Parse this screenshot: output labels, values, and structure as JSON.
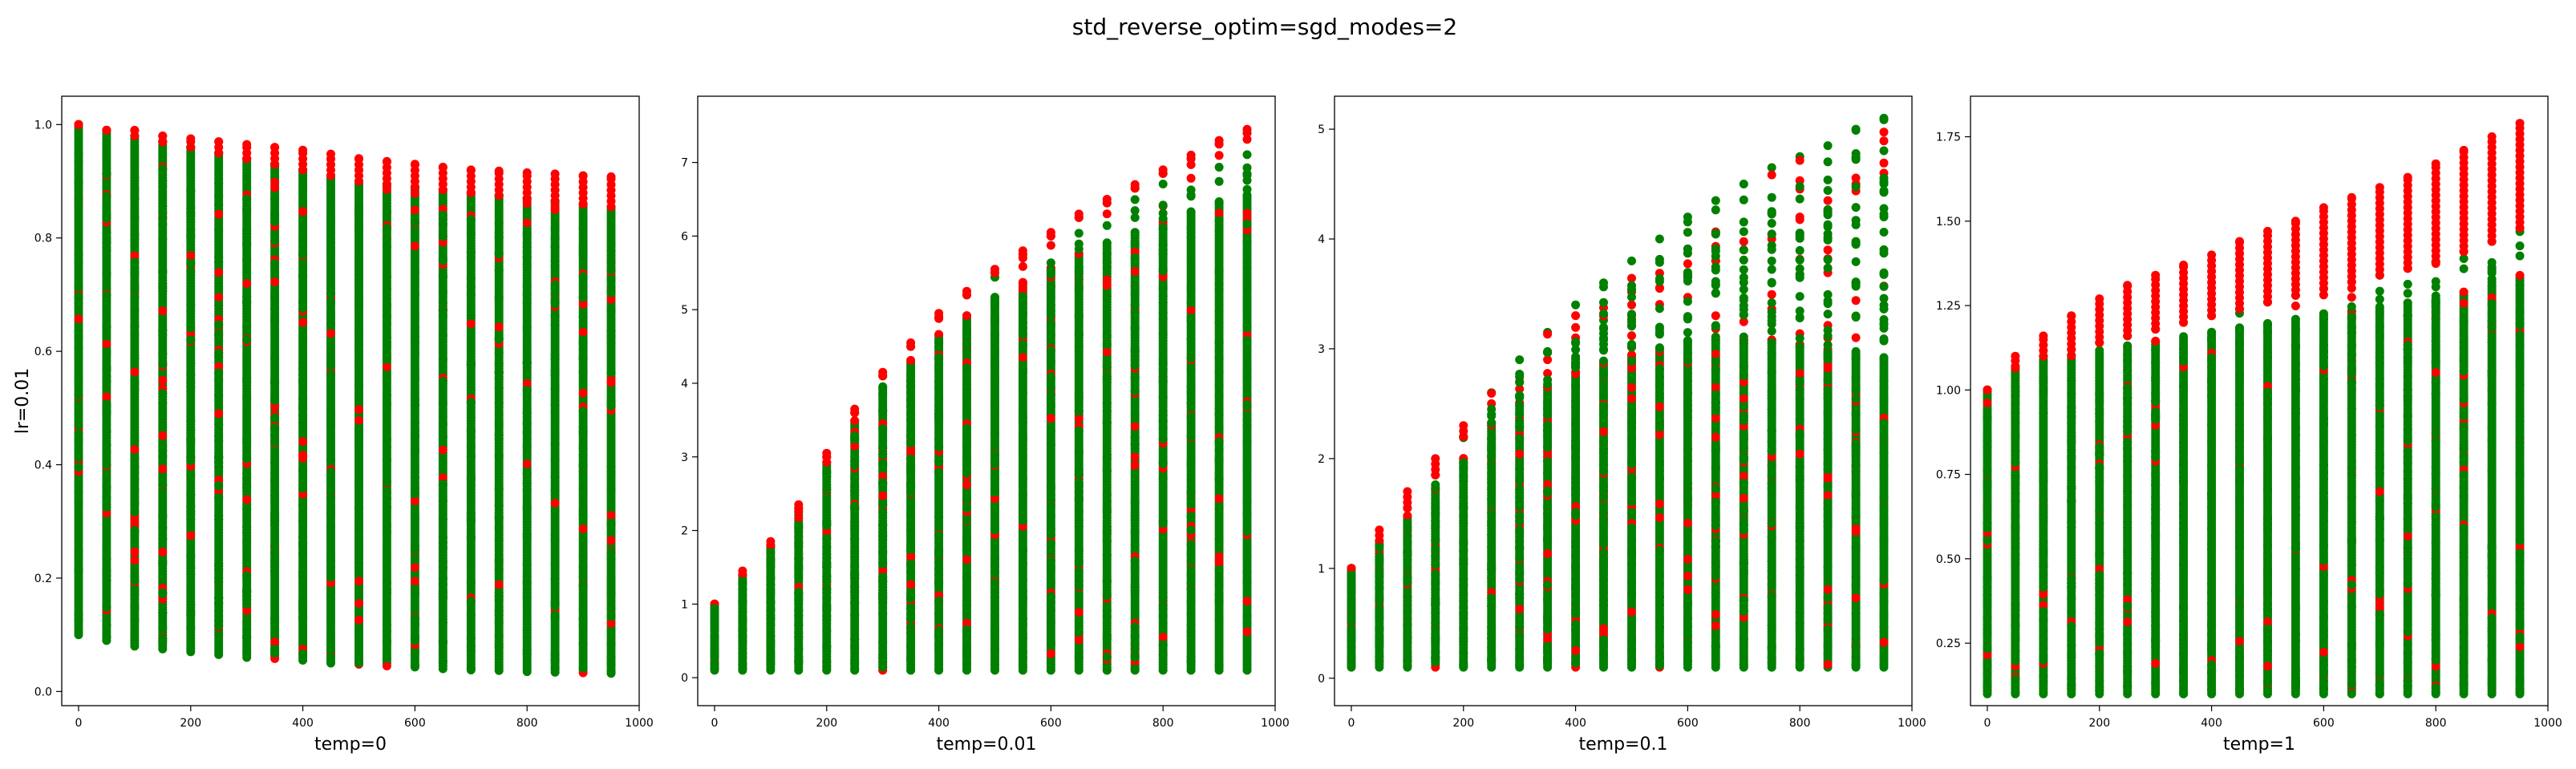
{
  "figure_title": "std_reverse_optim=sgd_modes=2",
  "colors": {
    "red": "#ff0000",
    "green": "#008000"
  },
  "chart_data": [
    {
      "type": "scatter",
      "xlabel": "temp=0",
      "ylabel": "lr=0.01",
      "xlim": [
        -30,
        1000
      ],
      "ylim": [
        -0.025,
        1.05
      ],
      "xticks": [
        0,
        200,
        400,
        600,
        800,
        1000
      ],
      "yticks": [
        0.0,
        0.2,
        0.4,
        0.6,
        0.8,
        1.0
      ],
      "ytick_labels": [
        "0.0",
        "0.2",
        "0.4",
        "0.6",
        "0.8",
        "1.0"
      ],
      "x": [
        0,
        50,
        100,
        150,
        200,
        250,
        300,
        350,
        400,
        450,
        500,
        550,
        600,
        650,
        700,
        750,
        800,
        850,
        900,
        950
      ],
      "red_max": [
        1.0,
        0.99,
        0.99,
        0.98,
        0.975,
        0.97,
        0.965,
        0.96,
        0.955,
        0.948,
        0.94,
        0.935,
        0.93,
        0.925,
        0.92,
        0.918,
        0.915,
        0.913,
        0.91,
        0.908
      ],
      "green_max": [
        1.0,
        0.99,
        0.98,
        0.97,
        0.96,
        0.95,
        0.94,
        0.93,
        0.92,
        0.91,
        0.9,
        0.895,
        0.89,
        0.885,
        0.88,
        0.875,
        0.87,
        0.865,
        0.86,
        0.855
      ],
      "green_min": [
        0.1,
        0.09,
        0.08,
        0.075,
        0.07,
        0.065,
        0.06,
        0.058,
        0.055,
        0.05,
        0.048,
        0.045,
        0.043,
        0.04,
        0.038,
        0.037,
        0.035,
        0.034,
        0.033,
        0.032
      ],
      "outlier_factor": 0,
      "red_density": 0.15
    },
    {
      "type": "scatter",
      "xlabel": "temp=0.01",
      "ylabel": "",
      "xlim": [
        -30,
        1000
      ],
      "ylim": [
        -0.38,
        7.9
      ],
      "xticks": [
        0,
        200,
        400,
        600,
        800,
        1000
      ],
      "yticks": [
        0,
        1,
        2,
        3,
        4,
        5,
        6,
        7
      ],
      "ytick_labels": [
        "0",
        "1",
        "2",
        "3",
        "4",
        "5",
        "6",
        "7"
      ],
      "x": [
        0,
        50,
        100,
        150,
        200,
        250,
        300,
        350,
        400,
        450,
        500,
        550,
        600,
        650,
        700,
        750,
        800,
        850,
        900,
        950
      ],
      "red_max": [
        1.0,
        1.45,
        1.85,
        2.35,
        3.05,
        3.65,
        4.15,
        4.55,
        4.95,
        5.25,
        5.55,
        5.8,
        6.05,
        6.3,
        6.5,
        6.7,
        6.9,
        7.1,
        7.3,
        7.45
      ],
      "green_max": [
        1.0,
        1.4,
        1.8,
        2.3,
        3.0,
        3.6,
        4.1,
        4.5,
        4.9,
        5.2,
        5.5,
        5.75,
        6.0,
        6.25,
        6.45,
        6.65,
        6.85,
        7.05,
        7.25,
        7.4
      ],
      "green_min": [
        0.1,
        0.1,
        0.1,
        0.1,
        0.1,
        0.1,
        0.1,
        0.1,
        0.1,
        0.1,
        0.1,
        0.1,
        0.1,
        0.1,
        0.1,
        0.1,
        0.1,
        0.1,
        0.1,
        0.1
      ],
      "outlier_factor": 0.12,
      "red_density": 0.2
    },
    {
      "type": "scatter",
      "xlabel": "temp=0.1",
      "ylabel": "",
      "xlim": [
        -30,
        1000
      ],
      "ylim": [
        -0.25,
        5.3
      ],
      "xticks": [
        0,
        200,
        400,
        600,
        800,
        1000
      ],
      "yticks": [
        0,
        1,
        2,
        3,
        4,
        5
      ],
      "ytick_labels": [
        "0",
        "1",
        "2",
        "3",
        "4",
        "5"
      ],
      "x": [
        0,
        50,
        100,
        150,
        200,
        250,
        300,
        350,
        400,
        450,
        500,
        550,
        600,
        650,
        700,
        750,
        800,
        850,
        900,
        950
      ],
      "red_max": [
        1.0,
        1.35,
        1.7,
        2.0,
        2.3,
        2.5,
        2.7,
        2.9,
        3.1,
        3.3,
        3.4,
        3.55,
        3.65,
        3.8,
        3.9,
        4.0,
        4.2,
        4.35,
        4.5,
        4.6
      ],
      "green_max": [
        1.0,
        1.25,
        1.55,
        1.85,
        2.2,
        2.6,
        2.9,
        3.15,
        3.4,
        3.6,
        3.8,
        4.0,
        4.2,
        4.35,
        4.5,
        4.65,
        4.75,
        4.85,
        5.0,
        5.1
      ],
      "green_min": [
        0.1,
        0.1,
        0.1,
        0.1,
        0.1,
        0.1,
        0.1,
        0.1,
        0.1,
        0.1,
        0.1,
        0.1,
        0.1,
        0.1,
        0.1,
        0.1,
        0.1,
        0.1,
        0.1,
        0.1
      ],
      "outlier_factor": 0.45,
      "red_density": 0.28
    },
    {
      "type": "scatter",
      "xlabel": "temp=1",
      "ylabel": "",
      "xlim": [
        -30,
        1000
      ],
      "ylim": [
        0.065,
        1.87
      ],
      "xticks": [
        0,
        200,
        400,
        600,
        800,
        1000
      ],
      "yticks": [
        0.25,
        0.5,
        0.75,
        1.0,
        1.25,
        1.5,
        1.75
      ],
      "ytick_labels": [
        "0.25",
        "0.50",
        "0.75",
        "1.00",
        "1.25",
        "1.50",
        "1.75"
      ],
      "x": [
        0,
        50,
        100,
        150,
        200,
        250,
        300,
        350,
        400,
        450,
        500,
        550,
        600,
        650,
        700,
        750,
        800,
        850,
        900,
        950
      ],
      "red_max": [
        1.0,
        1.1,
        1.16,
        1.22,
        1.27,
        1.31,
        1.34,
        1.37,
        1.4,
        1.44,
        1.47,
        1.5,
        1.54,
        1.57,
        1.6,
        1.63,
        1.67,
        1.71,
        1.75,
        1.79
      ],
      "green_max": [
        1.0,
        1.07,
        1.1,
        1.12,
        1.14,
        1.16,
        1.18,
        1.2,
        1.22,
        1.24,
        1.26,
        1.28,
        1.3,
        1.32,
        1.34,
        1.36,
        1.38,
        1.41,
        1.44,
        1.48
      ],
      "green_min": [
        0.1,
        0.1,
        0.1,
        0.1,
        0.1,
        0.1,
        0.1,
        0.1,
        0.1,
        0.1,
        0.1,
        0.1,
        0.1,
        0.1,
        0.1,
        0.1,
        0.1,
        0.1,
        0.1,
        0.1
      ],
      "outlier_factor": 0.1,
      "red_density": 0.12
    }
  ]
}
